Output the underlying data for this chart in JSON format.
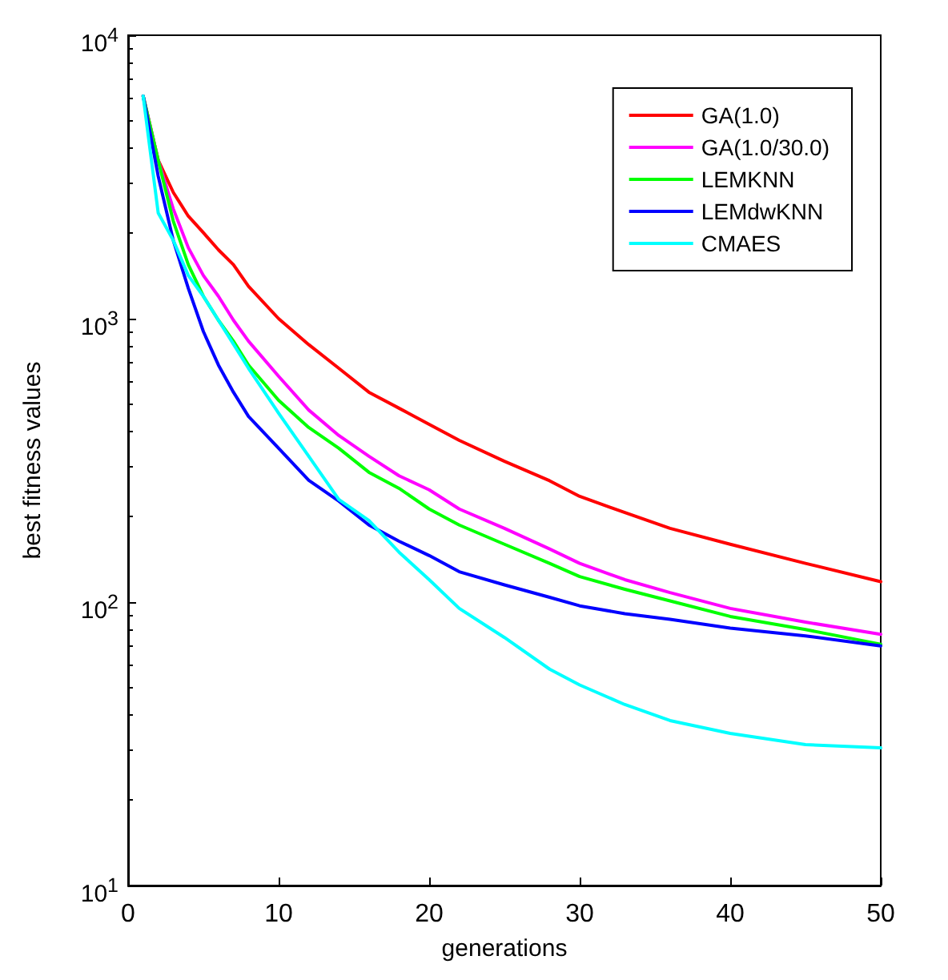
{
  "chart_data": {
    "type": "line",
    "xlabel": "generations",
    "ylabel": "best fitness values",
    "x": [
      1,
      2,
      3,
      4,
      5,
      6,
      7,
      8,
      10,
      12,
      14,
      16,
      18,
      20,
      22,
      25,
      28,
      30,
      33,
      36,
      40,
      45,
      50
    ],
    "series": [
      {
        "name": "GA(1.0)",
        "color": "#ff0000",
        "values": [
          6100,
          3620,
          2790,
          2300,
          2010,
          1750,
          1550,
          1300,
          1000,
          810,
          668,
          550,
          483,
          424,
          372,
          314,
          268,
          236,
          207,
          182,
          160,
          137,
          118
        ]
      },
      {
        "name": "GA(1.0/30.0)",
        "color": "#ff00ff",
        "values": [
          6100,
          3620,
          2440,
          1780,
          1420,
          1200,
          987,
          833,
          626,
          476,
          387,
          327,
          279,
          249,
          213,
          182,
          154,
          137,
          120,
          108,
          95,
          85,
          77
        ]
      },
      {
        "name": "LEMKNN",
        "color": "#00ff00",
        "values": [
          6100,
          3620,
          2210,
          1550,
          1200,
          987,
          833,
          686,
          515,
          413,
          349,
          287,
          252,
          213,
          187,
          160,
          137,
          123,
          111,
          101,
          89,
          80,
          71
        ]
      },
      {
        "name": "LEMdwKNN",
        "color": "#0000ff",
        "values": [
          6100,
          3180,
          1890,
          1280,
          901,
          686,
          550,
          452,
          349,
          269,
          227,
          187,
          164,
          146,
          128,
          115,
          104,
          97,
          91,
          87,
          81,
          76,
          70
        ]
      },
      {
        "name": "CMAES",
        "color": "#00ffff",
        "values": [
          6100,
          2360,
          1890,
          1420,
          1200,
          987,
          813,
          668,
          464,
          327,
          230,
          194,
          150,
          120,
          95,
          75,
          58,
          51,
          43.5,
          38.2,
          34.4,
          31.4,
          30.6
        ]
      }
    ],
    "xlim": [
      0,
      50
    ],
    "xticks": [
      0,
      10,
      20,
      30,
      40,
      50
    ],
    "ylim": [
      10,
      10000
    ],
    "yticks": [
      {
        "value": 10,
        "label": "10$^{1}$"
      },
      {
        "value": 100,
        "label": "10$^{2}$"
      },
      {
        "value": 1000,
        "label": "10$^{3}$"
      },
      {
        "value": 10000,
        "label": "10$^{4}$"
      }
    ],
    "log": "y",
    "grid": false,
    "legend": "top right",
    "marker": "none",
    "line_style": "solid"
  }
}
